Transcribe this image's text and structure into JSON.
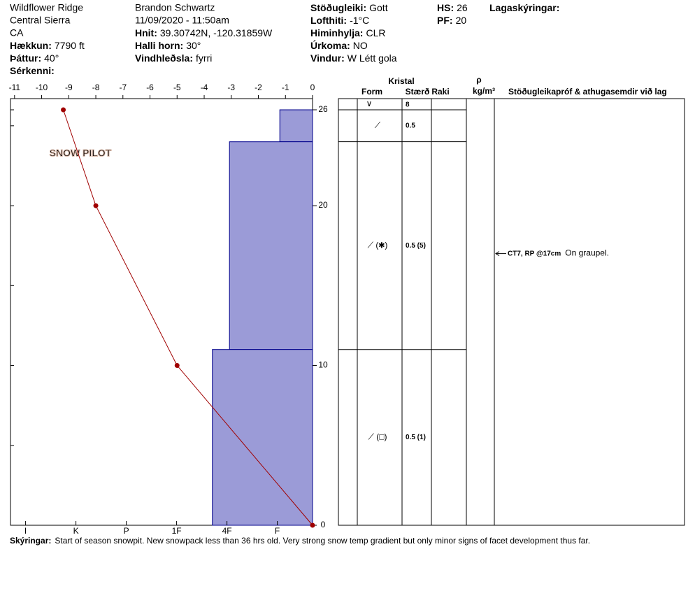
{
  "header": {
    "col1": {
      "lines": [
        "Wildflower Ridge",
        "Central Sierra",
        "CA"
      ],
      "fields": [
        {
          "label": "Hækkun:",
          "value": "7790 ft"
        },
        {
          "label": "Þáttur:",
          "value": "40°"
        },
        {
          "label": "Sérkenni:"
        }
      ]
    },
    "col2": {
      "lines": [
        "Brandon Schwartz",
        "11/09/2020 - 11:50am"
      ],
      "fields": [
        {
          "label": "Hnit:",
          "value": "39.30742N, -120.31859W"
        },
        {
          "label": "Halli horn:",
          "value": "30°"
        },
        {
          "label": "Vindhleðsla:",
          "value": "fyrri"
        }
      ]
    },
    "col3": {
      "lines": [],
      "fields": [
        {
          "label": "Stöðugleiki:",
          "value": "Gott"
        },
        {
          "label": "Lofthiti:",
          "value": "-1°C"
        },
        {
          "label": "Himinhylja:",
          "value": "CLR"
        },
        {
          "label": "Úrkoma:",
          "value": "NO"
        },
        {
          "label": "Vindur:",
          "value": "W Létt gola"
        }
      ]
    },
    "col4": {
      "lines": [],
      "fields": [
        {
          "label": "HS:",
          "value": "26"
        },
        {
          "label": "PF:",
          "value": "20"
        }
      ]
    },
    "col5": {
      "lines": [],
      "fields": [
        {
          "label": "Lagaskýringar:"
        }
      ]
    }
  },
  "watermark": "SNOW PILOT",
  "chart_data": {
    "type": "snowpit",
    "xlim": [
      -11.15,
      0
    ],
    "xticks": [
      -11,
      -10,
      -9,
      -8,
      -7,
      -6,
      -5,
      -4,
      -3,
      -2,
      -1,
      0
    ],
    "ylim": [
      0,
      26.7
    ],
    "yticks": [
      0,
      10,
      20,
      26
    ],
    "minor_yticks": [
      5,
      15,
      25
    ],
    "hardness_lim": [
      6.3,
      0.3
    ],
    "hardness_ticks": [
      {
        "value": 6,
        "label": "I"
      },
      {
        "value": 5,
        "label": "K"
      },
      {
        "value": 4,
        "label": "P"
      },
      {
        "value": 3,
        "label": "1F"
      },
      {
        "value": 2,
        "label": "4F"
      },
      {
        "value": 1,
        "label": "F"
      }
    ],
    "hardness_color": "#9b9bd7",
    "temp_color": "#a00000",
    "temperature": {
      "heights": [
        26,
        20,
        10,
        0
      ],
      "values": [
        -9.2,
        -8,
        -5,
        0
      ]
    },
    "table_headers": {
      "crystal": "Kristal",
      "form": "Form",
      "size": "Stærð",
      "moisture": "Raki",
      "density": "ρ",
      "density_unit": "kg/m³",
      "comments": "Stöðugleikapróf & athugasemdir við lag"
    },
    "surface": {
      "form": "∨",
      "size": "8"
    },
    "layers": [
      {
        "bottom": 24,
        "top": 26,
        "hardness": 0.95,
        "form": "⟋",
        "size": "0.5"
      },
      {
        "bottom": 11,
        "top": 24,
        "hardness": 1.95,
        "form": "⟋ (✱)",
        "size": "0.5 (5)"
      },
      {
        "bottom": 0,
        "top": 11,
        "hardness": 2.29,
        "form": "⟋ (□)",
        "size": "0.5 (1)"
      }
    ],
    "tests": [
      {
        "height": 17,
        "label": "CT7, RP @17cm",
        "comment": "On graupel."
      }
    ]
  },
  "footer": {
    "label": "Skýringar:",
    "text": "Start of season snowpit. New snowpack less than 36 hrs old. Very strong snow temp gradient but only minor signs of facet development thus far."
  }
}
